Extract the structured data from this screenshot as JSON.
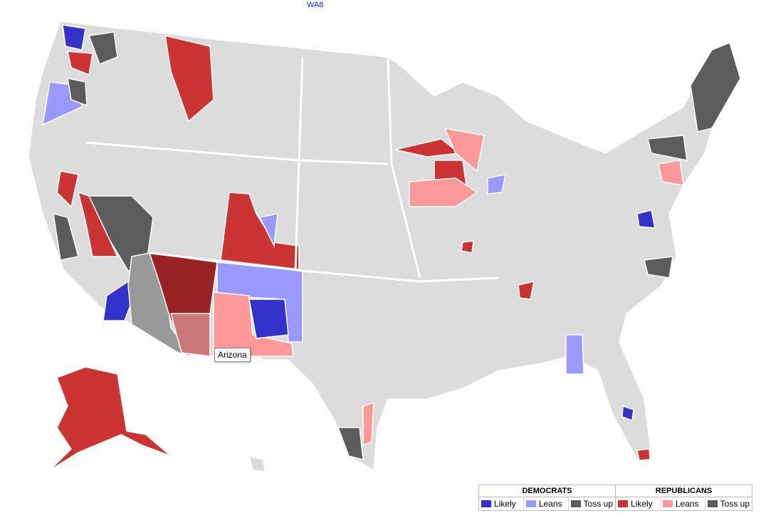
{
  "header": {
    "label": "WA8"
  },
  "tooltip": {
    "label": "Arizona"
  },
  "legend": {
    "groups": [
      {
        "title": "DEMOCRATS",
        "items": [
          {
            "label": "Likely",
            "color": "#3333cc"
          },
          {
            "label": "Leans",
            "color": "#9999ff"
          },
          {
            "label": "Toss up",
            "color": "#5c5c5c"
          }
        ]
      },
      {
        "title": "REPUBLICANS",
        "items": [
          {
            "label": "Likely",
            "color": "#cc3333"
          },
          {
            "label": "Leans",
            "color": "#ff9999"
          },
          {
            "label": "Toss up",
            "color": "#5c5c5c"
          }
        ]
      }
    ]
  }
}
